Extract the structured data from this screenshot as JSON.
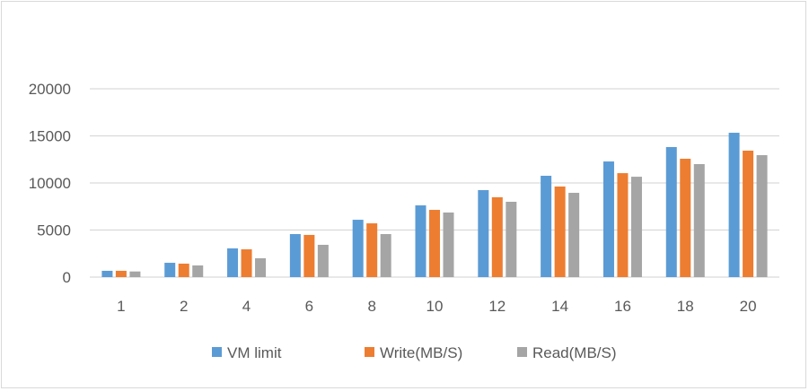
{
  "chart_data": {
    "type": "bar",
    "title": "",
    "xlabel": "",
    "ylabel": "",
    "ylim": [
      0,
      20000
    ],
    "yticks": [
      0,
      5000,
      10000,
      15000,
      20000
    ],
    "grid": true,
    "legend_position": "bottom",
    "categories": [
      "1",
      "2",
      "4",
      "6",
      "8",
      "10",
      "12",
      "14",
      "16",
      "18",
      "20"
    ],
    "series": [
      {
        "name": "VM limit",
        "color": "#5b9bd5",
        "values": [
          670,
          1520,
          3050,
          4570,
          6090,
          7620,
          9240,
          10760,
          12280,
          13810,
          15330
        ]
      },
      {
        "name": "Write(MB/S)",
        "color": "#ed7d31",
        "values": [
          670,
          1430,
          2950,
          4480,
          5710,
          7140,
          8480,
          9620,
          11040,
          12570,
          13430
        ]
      },
      {
        "name": "Read(MB/S)",
        "color": "#a5a5a5",
        "values": [
          600,
          1240,
          2000,
          3430,
          4570,
          6860,
          8000,
          8950,
          10660,
          12000,
          12950
        ]
      }
    ]
  }
}
